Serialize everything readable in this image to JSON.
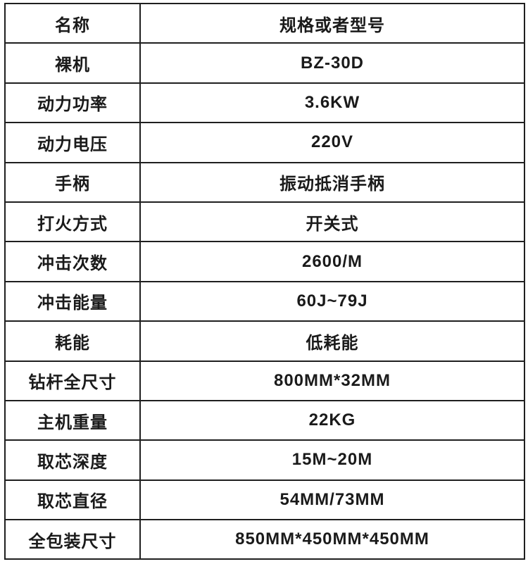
{
  "table": {
    "header": {
      "col1": "名称",
      "col2": "规格或者型号"
    },
    "rows": [
      {
        "label": "裸机",
        "value": "BZ-30D"
      },
      {
        "label": "动力功率",
        "value": "3.6KW"
      },
      {
        "label": "动力电压",
        "value": "220V"
      },
      {
        "label": "手柄",
        "value": "振动抵消手柄"
      },
      {
        "label": "打火方式",
        "value": "开关式"
      },
      {
        "label": "冲击次数",
        "value": "2600/M"
      },
      {
        "label": "冲击能量",
        "value": "60J~79J"
      },
      {
        "label": "耗能",
        "value": "低耗能"
      },
      {
        "label": "钻杆全尺寸",
        "value": "800MM*32MM"
      },
      {
        "label": "主机重量",
        "value": "22KG"
      },
      {
        "label": "取芯深度",
        "value": "15M~20M"
      },
      {
        "label": "取芯直径",
        "value": "54MM/73MM"
      },
      {
        "label": "全包装尺寸",
        "value": "850MM*450MM*450MM"
      }
    ],
    "colors": {
      "border": "#1f1f1f",
      "text": "#1a1a1a",
      "background": "#ffffff"
    }
  }
}
